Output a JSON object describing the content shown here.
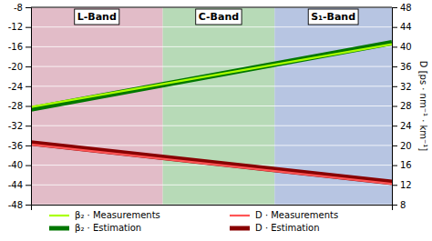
{
  "chart_data": {
    "type": "line",
    "x": [
      0,
      1
    ],
    "xlim": [
      0,
      1
    ],
    "xticks": [],
    "ylim": [
      -48,
      -8
    ],
    "yticks": [
      -48,
      -44,
      -40,
      -36,
      -32,
      -28,
      -24,
      -20,
      -16,
      -12,
      -8
    ],
    "y2lim": [
      8,
      48
    ],
    "y2ticks": [
      8,
      12,
      16,
      20,
      24,
      28,
      32,
      36,
      40,
      44,
      48
    ],
    "y2_label": "D [ps · nm⁻¹ · km⁻¹]",
    "series": [
      {
        "name": "β₂ · Measurements",
        "color": "#aaff00",
        "values": [
          -28.2,
          -15.5
        ]
      },
      {
        "name": "β₂ · Estimation",
        "color": "#007700",
        "values": [
          -28.6,
          -15.2
        ]
      },
      {
        "name": "D · Measurements",
        "color": "#ff5555",
        "values": [
          -35.8,
          -43.8
        ]
      },
      {
        "name": "D · Estimation",
        "color": "#880000",
        "values": [
          -35.5,
          -43.5
        ]
      }
    ],
    "bands": [
      {
        "label": "L-Band",
        "x0": 0.0,
        "x1": 0.365,
        "color": "#ddb0be"
      },
      {
        "label": "C-Band",
        "x0": 0.365,
        "x1": 0.675,
        "color": "#aad4aa"
      },
      {
        "label": "S₁-Band",
        "x0": 0.675,
        "x1": 1.0,
        "color": "#aabbdd"
      }
    ],
    "grid": true,
    "legend": "bottom",
    "tick_labels": "y"
  }
}
